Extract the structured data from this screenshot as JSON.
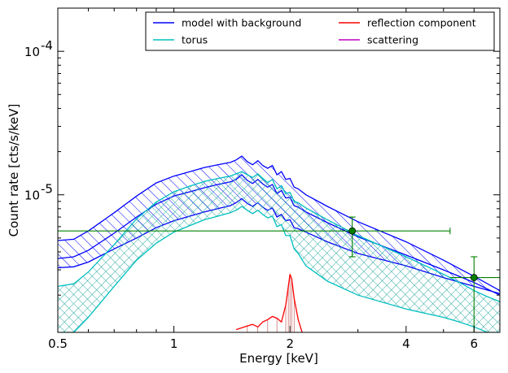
{
  "chart_data": {
    "type": "line",
    "xlabel": "Energy [keV]",
    "ylabel": "Count rate [cts/s/keV]",
    "xscale": "log",
    "yscale": "log",
    "xlim": [
      0.5,
      7.0
    ],
    "ylim": [
      1.1e-06,
      0.0002
    ],
    "xticks": [
      {
        "value": 0.5,
        "label": "0.5"
      },
      {
        "value": 1,
        "label": "1"
      },
      {
        "value": 2,
        "label": "2"
      },
      {
        "value": 4,
        "label": "4"
      },
      {
        "value": 6,
        "label": "6"
      }
    ],
    "yticks": [
      {
        "value": 1e-05,
        "label": "10",
        "exp": "-5"
      },
      {
        "value": 0.0001,
        "label": "10",
        "exp": "-4"
      }
    ],
    "grid": false,
    "legend": {
      "placement": "top-right",
      "columns": 2,
      "entries": [
        {
          "label": "model with background",
          "color": "#0000ff"
        },
        {
          "label": "torus",
          "color": "#00bfbf"
        },
        {
          "label": "reflection component",
          "color": "#ff0000"
        },
        {
          "label": "scattering",
          "color": "#bf00bf"
        }
      ]
    },
    "series": [
      {
        "name": "model with background",
        "color": "#0000ff",
        "style": "band",
        "hatch": "diagonal",
        "x": [
          0.5,
          0.55,
          0.6,
          0.7,
          0.8,
          0.9,
          1.0,
          1.1,
          1.2,
          1.3,
          1.4,
          1.45,
          1.5,
          1.55,
          1.6,
          1.65,
          1.7,
          1.75,
          1.8,
          1.85,
          1.9,
          1.95,
          2.0,
          2.05,
          2.1,
          2.2,
          2.5,
          3.0,
          4.0,
          5.0,
          6.0,
          7.0
        ],
        "upper": [
          4.8e-06,
          4.9e-06,
          5.6e-06,
          7.5e-06,
          9.8e-06,
          1.21e-05,
          1.35e-05,
          1.45e-05,
          1.55e-05,
          1.62e-05,
          1.68e-05,
          1.75e-05,
          1.86e-05,
          1.7e-05,
          1.62e-05,
          1.73e-05,
          1.6e-05,
          1.53e-05,
          1.6e-05,
          1.38e-05,
          1.45e-05,
          1.28e-05,
          1.3e-05,
          1.13e-05,
          1.1e-05,
          1e-05,
          8.3e-06,
          6.5e-06,
          4.7e-06,
          3.5e-06,
          2.7e-06,
          2.15e-06
        ],
        "mid": [
          3.6e-06,
          3.7e-06,
          4.1e-06,
          5.4e-06,
          7e-06,
          8.6e-06,
          9.8e-06,
          1.05e-05,
          1.12e-05,
          1.18e-05,
          1.23e-05,
          1.28e-05,
          1.38e-05,
          1.26e-05,
          1.2e-05,
          1.28e-05,
          1.19e-05,
          1.13e-05,
          1.18e-05,
          1.02e-05,
          1.07e-05,
          9.5e-06,
          9.6e-06,
          8.4e-06,
          8.2e-06,
          7.6e-06,
          6.4e-06,
          5.1e-06,
          3.8e-06,
          3e-06,
          2.45e-06,
          2e-06
        ],
        "lower": [
          3.1e-06,
          3.15e-06,
          3.4e-06,
          4.2e-06,
          5e-06,
          5.9e-06,
          6.6e-06,
          7.1e-06,
          7.6e-06,
          8e-06,
          8.4e-06,
          8.8e-06,
          9.4e-06,
          8.7e-06,
          8.3e-06,
          8.8e-06,
          8.2e-06,
          7.8e-06,
          8.1e-06,
          7e-06,
          7.3e-06,
          6.6e-06,
          6.7e-06,
          5.9e-06,
          5.8e-06,
          5.5e-06,
          4.7e-06,
          3.9e-06,
          3.2e-06,
          2.65e-06,
          2.3e-06,
          2.05e-06
        ]
      },
      {
        "name": "torus",
        "color": "#00bfbf",
        "style": "band",
        "hatch": "cross",
        "x": [
          0.5,
          0.55,
          0.6,
          0.7,
          0.8,
          0.9,
          1.0,
          1.1,
          1.2,
          1.3,
          1.4,
          1.45,
          1.5,
          1.55,
          1.6,
          1.65,
          1.7,
          1.75,
          1.8,
          1.85,
          1.9,
          1.95,
          2.0,
          2.05,
          2.1,
          2.2,
          2.5,
          3.0,
          4.0,
          5.0,
          5.5,
          6.0,
          6.5,
          7.0
        ],
        "upper": [
          2.3e-06,
          2.4e-06,
          2.9e-06,
          4.5e-06,
          6.8e-06,
          8.9e-06,
          1.05e-05,
          1.15e-05,
          1.24e-05,
          1.3e-05,
          1.35e-05,
          1.4e-05,
          1.45e-05,
          1.38e-05,
          1.32e-05,
          1.4e-05,
          1.3e-05,
          1.22e-05,
          1.28e-05,
          1.1e-05,
          1.16e-05,
          1.02e-05,
          1.04e-05,
          9e-06,
          8.8e-06,
          8.1e-06,
          6.7e-06,
          5.2e-06,
          3.7e-06,
          2.8e-06,
          2.45e-06,
          2.15e-06,
          1.95e-06,
          1.8e-06
        ],
        "lower": [
          1.1e-06,
          1.1e-06,
          1.4e-06,
          2.3e-06,
          3.5e-06,
          4.6e-06,
          5.5e-06,
          6.1e-06,
          6.7e-06,
          7.1e-06,
          7.5e-06,
          7.8e-06,
          8.3e-06,
          7.8e-06,
          7.4e-06,
          7.8e-06,
          7.3e-06,
          6.9e-06,
          7.1e-06,
          6e-06,
          6.2e-06,
          5.2e-06,
          5.2e-06,
          4.2e-06,
          3.9e-06,
          3.2e-06,
          2.5e-06,
          2e-06,
          1.6e-06,
          1.4e-06,
          1.3e-06,
          1.2e-06,
          1.1e-06,
          1.1e-06
        ]
      },
      {
        "name": "reflection component",
        "color": "#ff0000",
        "style": "line",
        "x": [
          1.45,
          1.55,
          1.6,
          1.65,
          1.7,
          1.75,
          1.8,
          1.85,
          1.9,
          1.95,
          1.98,
          2.0,
          2.02,
          2.05,
          2.1,
          2.15
        ],
        "y": [
          1.15e-06,
          1.22e-06,
          1.25e-06,
          1.2e-06,
          1.3e-06,
          1.35e-06,
          1.42e-06,
          1.38e-06,
          1.3e-06,
          1.7e-06,
          2.3e-06,
          2.8e-06,
          2.6e-06,
          1.9e-06,
          1.35e-06,
          1.1e-06
        ]
      },
      {
        "name": "data",
        "color": "#008000",
        "style": "errorbar",
        "points": [
          {
            "x": 2.9,
            "y": 5.6e-06,
            "xerr": [
              0.5,
              5.2
            ],
            "yerr": [
              3.7e-06,
              7e-06
            ]
          },
          {
            "x": 6.0,
            "y": 2.65e-06,
            "xerr": [
              5.2,
              7.0
            ],
            "yerr": [
              1.1e-06,
              3.7e-06
            ]
          }
        ]
      }
    ]
  }
}
